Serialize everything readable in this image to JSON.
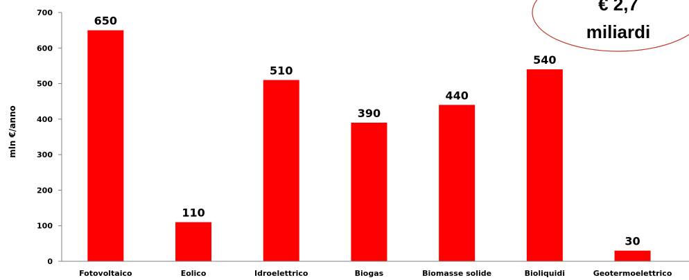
{
  "chart_data": {
    "type": "bar",
    "categories": [
      "Fotovoltaico",
      "Eolico",
      "Idroelettrico",
      "Biogas",
      "Biomasse solide",
      "Bioliquidi",
      "Geotermoelettrico"
    ],
    "values": [
      650,
      110,
      510,
      390,
      440,
      540,
      30
    ],
    "data_labels": [
      "650",
      "110",
      "510",
      "390",
      "440",
      "540",
      "30"
    ],
    "ylabel": "mln €/anno",
    "ylim": [
      0,
      700
    ],
    "yticks": [
      "0",
      "100",
      "200",
      "300",
      "400",
      "500",
      "600",
      "700"
    ],
    "bar_color": "#ff0000",
    "grid": false
  },
  "callout": {
    "line1": "€ 2,7",
    "line2": "miliardi",
    "border_color": "#c0392b"
  }
}
